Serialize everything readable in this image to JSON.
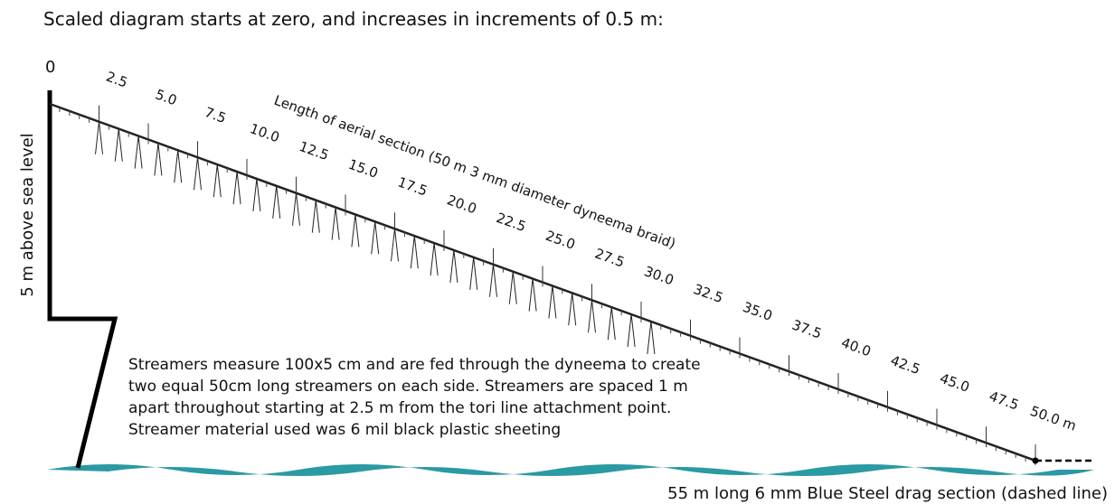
{
  "title": "Scaled diagram starts at zero, and increases in increments of 0.5 m:",
  "zero_label": "0",
  "distance_labels": [
    "2.5",
    "5.0",
    "7.5",
    "10.0",
    "12.5",
    "15.0",
    "17.5",
    "20.0",
    "22.5",
    "25.0",
    "27.5",
    "30.0",
    "32.5",
    "35.0",
    "37.5",
    "40.0",
    "42.5",
    "45.0",
    "47.5",
    "50.0 m"
  ],
  "line_label": "Length of aerial section (50 m 3 mm diameter dyneema braid)",
  "height_label": "5 m above sea level",
  "note": [
    "Streamers measure 100x5 cm and are fed through the dyneema to create",
    "two equal 50cm long streamers on each side. Streamers are spaced 1 m",
    "apart throughout starting at 2.5 m from the tori line attachment point.",
    "Streamer material used was 6 mil black plastic sheeting"
  ],
  "caption": "55 m long 6 mm Blue Steel drag section (dashed line)"
}
